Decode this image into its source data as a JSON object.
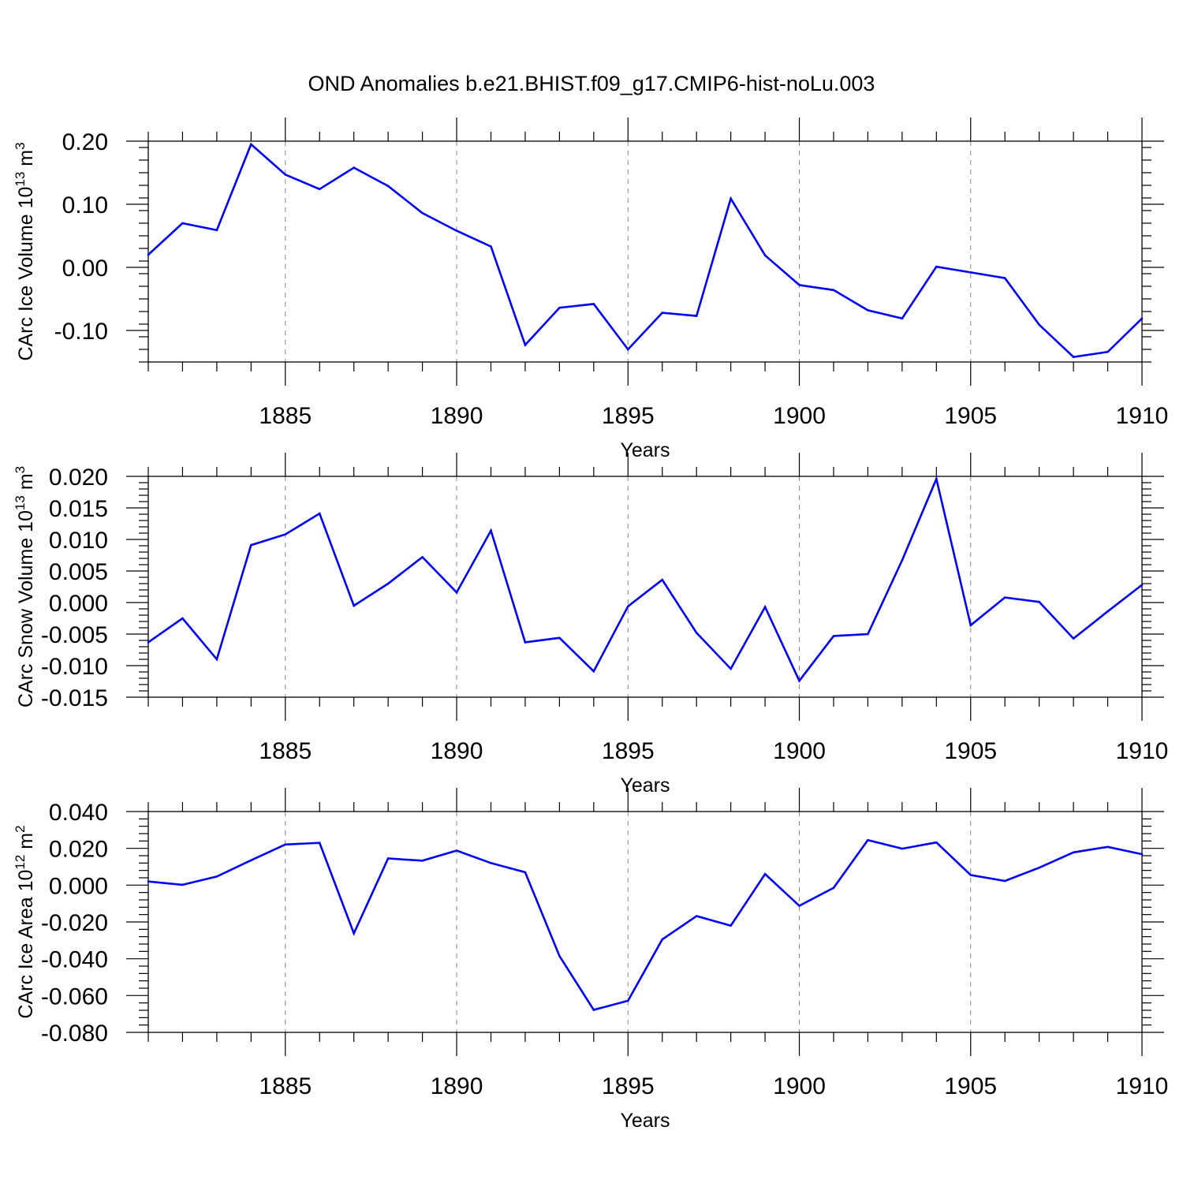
{
  "figure_title": "OND Anomalies b.e21.BHIST.f09_g17.CMIP6-hist-noLu.003",
  "line_color": "#0000ff",
  "chart_data": [
    {
      "type": "line",
      "title": "",
      "xlabel": "Years",
      "ylabel": {
        "base": "CArc Ice Volume 10",
        "exponent": "13",
        "unit": " m",
        "unit_exponent": "3"
      },
      "x": [
        1881,
        1882,
        1883,
        1884,
        1885,
        1886,
        1887,
        1888,
        1889,
        1890,
        1891,
        1892,
        1893,
        1894,
        1895,
        1896,
        1897,
        1898,
        1899,
        1900,
        1901,
        1902,
        1903,
        1904,
        1905,
        1906,
        1907,
        1908,
        1909,
        1910
      ],
      "values": [
        0.02,
        0.07,
        0.059,
        0.195,
        0.147,
        0.124,
        0.158,
        0.129,
        0.086,
        0.058,
        0.033,
        -0.123,
        -0.064,
        -0.058,
        -0.13,
        -0.072,
        -0.077,
        0.109,
        0.019,
        -0.028,
        -0.036,
        -0.068,
        -0.081,
        0.001,
        -0.008,
        -0.017,
        -0.091,
        -0.142,
        -0.134,
        -0.081
      ],
      "xlim": [
        1881,
        1910
      ],
      "ylim": [
        -0.15,
        0.2
      ],
      "yticks": [
        -0.1,
        0.0,
        0.1,
        0.2
      ],
      "ytick_labels": [
        "-0.10",
        "0.00",
        "0.10",
        "0.20"
      ],
      "xticks": [
        1885,
        1890,
        1895,
        1900,
        1905,
        1910
      ],
      "xtick_labels": [
        "1885",
        "1890",
        "1895",
        "1900",
        "1905",
        "1910"
      ],
      "grid": "vertical dashed at major x ticks"
    },
    {
      "type": "line",
      "title": "",
      "xlabel": "Years",
      "ylabel": {
        "base": "CArc Snow Volume 10",
        "exponent": "13",
        "unit": " m",
        "unit_exponent": "3"
      },
      "x": [
        1881,
        1882,
        1883,
        1884,
        1885,
        1886,
        1887,
        1888,
        1889,
        1890,
        1891,
        1892,
        1893,
        1894,
        1895,
        1896,
        1897,
        1898,
        1899,
        1900,
        1901,
        1902,
        1903,
        1904,
        1905,
        1906,
        1907,
        1908,
        1909,
        1910
      ],
      "values": [
        -0.0063,
        -0.0025,
        -0.009,
        0.0091,
        0.0108,
        0.0141,
        -0.0005,
        0.003,
        0.0072,
        0.0016,
        0.0114,
        -0.0063,
        -0.0056,
        -0.0109,
        -0.0006,
        0.0036,
        -0.0048,
        -0.0105,
        -0.0007,
        -0.0124,
        -0.0053,
        -0.005,
        0.0067,
        0.0196,
        -0.0036,
        0.0008,
        0.0001,
        -0.0057,
        -0.0014,
        0.0028
      ],
      "xlim": [
        1881,
        1910
      ],
      "ylim": [
        -0.015,
        0.02
      ],
      "yticks": [
        -0.015,
        -0.01,
        -0.005,
        0.0,
        0.005,
        0.01,
        0.015,
        0.02
      ],
      "ytick_labels": [
        "-0.015",
        "-0.010",
        "-0.005",
        "0.000",
        "0.005",
        "0.010",
        "0.015",
        "0.020"
      ],
      "xticks": [
        1885,
        1890,
        1895,
        1900,
        1905,
        1910
      ],
      "xtick_labels": [
        "1885",
        "1890",
        "1895",
        "1900",
        "1905",
        "1910"
      ],
      "grid": "vertical dashed at major x ticks"
    },
    {
      "type": "line",
      "title": "",
      "xlabel": "Years",
      "ylabel": {
        "base": "CArc Ice Area 10",
        "exponent": "12",
        "unit": " m",
        "unit_exponent": "2"
      },
      "x": [
        1881,
        1882,
        1883,
        1884,
        1885,
        1886,
        1887,
        1888,
        1889,
        1890,
        1891,
        1892,
        1893,
        1894,
        1895,
        1896,
        1897,
        1898,
        1899,
        1900,
        1901,
        1902,
        1903,
        1904,
        1905,
        1906,
        1907,
        1908,
        1909,
        1910
      ],
      "values": [
        0.002,
        0.0002,
        0.0047,
        0.0135,
        0.0221,
        0.023,
        -0.0262,
        0.0145,
        0.0133,
        0.0188,
        0.012,
        0.007,
        -0.0385,
        -0.0678,
        -0.0628,
        -0.0295,
        -0.0168,
        -0.022,
        0.006,
        -0.0112,
        -0.0015,
        0.0245,
        0.0198,
        0.0232,
        0.0055,
        0.0023,
        0.0095,
        0.0178,
        0.0208,
        0.0168
      ],
      "xlim": [
        1881,
        1910
      ],
      "ylim": [
        -0.08,
        0.04
      ],
      "yticks": [
        -0.08,
        -0.06,
        -0.04,
        -0.02,
        0.0,
        0.02,
        0.04
      ],
      "ytick_labels": [
        "-0.080",
        "-0.060",
        "-0.040",
        "-0.020",
        "0.000",
        "0.020",
        "0.040"
      ],
      "xticks": [
        1885,
        1890,
        1895,
        1900,
        1905,
        1910
      ],
      "xtick_labels": [
        "1885",
        "1890",
        "1895",
        "1900",
        "1905",
        "1910"
      ],
      "grid": "vertical dashed at major x ticks"
    }
  ]
}
